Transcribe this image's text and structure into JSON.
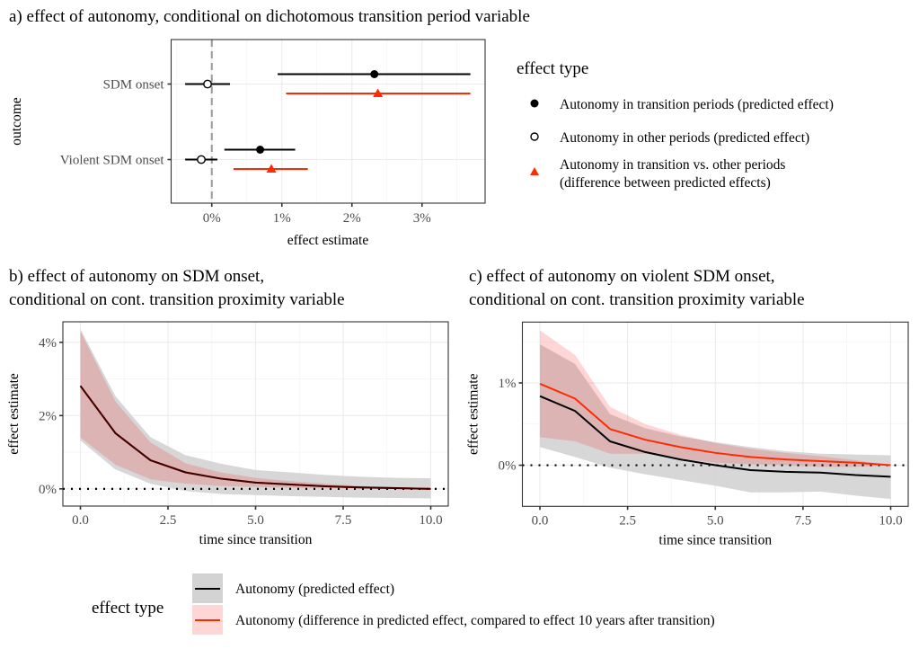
{
  "chart_data": [
    {
      "id": "a",
      "type": "pointrange",
      "title": "a) effect of autonomy, conditional on dichotomous transition period variable",
      "xlabel": "effect estimate",
      "ylabel": "outcome",
      "xlim": [
        -0.58,
        3.9
      ],
      "x_ticks": [
        0,
        1,
        2,
        3
      ],
      "x_tick_labels": [
        "0%",
        "1%",
        "2%",
        "3%"
      ],
      "reference_line": {
        "x": 0,
        "style": "dashed"
      },
      "categories": [
        "SDM onset",
        "Violent SDM onset"
      ],
      "series": [
        {
          "name": "Autonomy in transition periods (predicted effect)",
          "marker": "filled-circle",
          "color": "#000000",
          "points": [
            {
              "category": "SDM onset",
              "estimate": 2.32,
              "low": 0.94,
              "high": 3.69
            },
            {
              "category": "Violent SDM onset",
              "estimate": 0.69,
              "low": 0.18,
              "high": 1.19
            }
          ]
        },
        {
          "name": "Autonomy in other periods (predicted effect)",
          "marker": "open-circle",
          "color": "#000000",
          "points": [
            {
              "category": "SDM onset",
              "estimate": -0.06,
              "low": -0.38,
              "high": 0.26
            },
            {
              "category": "Violent SDM onset",
              "estimate": -0.15,
              "low": -0.38,
              "high": 0.08
            }
          ]
        },
        {
          "name": "Autonomy in transition vs. other periods (difference between predicted effects)",
          "marker": "triangle",
          "color": "#ff2a00",
          "points": [
            {
              "category": "SDM onset",
              "estimate": 2.37,
              "low": 1.06,
              "high": 3.69
            },
            {
              "category": "Violent SDM onset",
              "estimate": 0.85,
              "low": 0.31,
              "high": 1.37
            }
          ]
        }
      ],
      "legend": {
        "title": "effect type",
        "position": "right",
        "items": [
          {
            "marker": "filled-circle",
            "lines": [
              "Autonomy in transition periods (predicted effect)"
            ]
          },
          {
            "marker": "open-circle",
            "lines": [
              "Autonomy in other periods (predicted effect)"
            ]
          },
          {
            "marker": "triangle",
            "lines": [
              "Autonomy in transition vs. other periods",
              "(difference between predicted effects)"
            ]
          }
        ]
      }
    },
    {
      "id": "b",
      "type": "line",
      "title": [
        "b) effect of autonomy on SDM onset,",
        "conditional on cont. transition proximity variable"
      ],
      "xlabel": "time since transition",
      "ylabel": "effect estimate",
      "xlim": [
        -0.5,
        10.5
      ],
      "ylim": [
        -0.47,
        4.56
      ],
      "x_ticks": [
        0,
        2.5,
        5,
        7.5,
        10
      ],
      "x_tick_labels": [
        "0.0",
        "2.5",
        "5.0",
        "7.5",
        "10.0"
      ],
      "y_ticks": [
        0,
        2,
        4
      ],
      "y_tick_labels": [
        "0%",
        "2%",
        "4%"
      ],
      "reference_line": {
        "y": 0,
        "style": "dotted"
      },
      "x": [
        0,
        1,
        2,
        3,
        4,
        5,
        6,
        7,
        8,
        9,
        10
      ],
      "series": [
        {
          "name": "Autonomy (predicted effect)",
          "color": "#000000",
          "ribbon": "#d3d3d3",
          "values": [
            2.81,
            1.52,
            0.78,
            0.45,
            0.28,
            0.17,
            0.12,
            0.07,
            0.04,
            0.02,
            0.0
          ],
          "low": [
            1.32,
            0.53,
            0.14,
            -0.06,
            -0.14,
            -0.17,
            -0.2,
            -0.22,
            -0.24,
            -0.25,
            -0.26
          ],
          "high": [
            4.36,
            2.53,
            1.41,
            0.92,
            0.69,
            0.51,
            0.45,
            0.38,
            0.33,
            0.3,
            0.29
          ]
        },
        {
          "name": "Autonomy (difference in predicted effect, compared to effect 10 years after transition)",
          "color": "#ff2a00",
          "ribbon": "#ff0000",
          "values": [
            2.81,
            1.52,
            0.78,
            0.45,
            0.28,
            0.17,
            0.12,
            0.07,
            0.04,
            0.02,
            0.0
          ],
          "low": [
            1.4,
            0.66,
            0.26,
            0.14,
            0.08,
            0.05,
            0.03,
            0.02,
            0.01,
            0.0,
            0.0
          ],
          "high": [
            4.3,
            2.39,
            1.27,
            0.7,
            0.45,
            0.3,
            0.21,
            0.14,
            0.08,
            0.04,
            0.0
          ]
        }
      ]
    },
    {
      "id": "c",
      "type": "line",
      "title": [
        "c) effect of autonomy on violent SDM onset,",
        "conditional on cont. transition proximity variable"
      ],
      "xlabel": "time since transition",
      "ylabel": "effect estimate",
      "xlim": [
        -0.5,
        10.5
      ],
      "ylim": [
        -0.5,
        1.74
      ],
      "x_ticks": [
        0,
        2.5,
        5,
        7.5,
        10
      ],
      "x_tick_labels": [
        "0.0",
        "2.5",
        "5.0",
        "7.5",
        "10.0"
      ],
      "y_ticks": [
        0,
        1
      ],
      "y_tick_labels": [
        "0%",
        "1%"
      ],
      "reference_line": {
        "y": 0,
        "style": "dotted"
      },
      "x": [
        0,
        1,
        2,
        3,
        4,
        5,
        6,
        7,
        8,
        9,
        10
      ],
      "series": [
        {
          "name": "Autonomy (predicted effect)",
          "color": "#000000",
          "ribbon": "#d3d3d3",
          "values": [
            0.84,
            0.66,
            0.29,
            0.16,
            0.07,
            0.0,
            -0.06,
            -0.08,
            -0.09,
            -0.12,
            -0.14
          ],
          "low": [
            0.22,
            0.1,
            -0.03,
            -0.11,
            -0.18,
            -0.25,
            -0.33,
            -0.33,
            -0.32,
            -0.37,
            -0.41
          ],
          "high": [
            1.47,
            1.23,
            0.62,
            0.45,
            0.35,
            0.28,
            0.22,
            0.17,
            0.14,
            0.13,
            0.12
          ]
        },
        {
          "name": "Autonomy (difference in predicted effect, compared to effect 10 years after transition)",
          "color": "#ff2a00",
          "ribbon": "#ff0000",
          "values": [
            0.99,
            0.81,
            0.44,
            0.31,
            0.22,
            0.15,
            0.1,
            0.07,
            0.05,
            0.03,
            0.0
          ],
          "low": [
            0.34,
            0.29,
            0.14,
            0.14,
            0.08,
            0.03,
            0.01,
            0.0,
            -0.02,
            -0.02,
            0.0
          ],
          "high": [
            1.64,
            1.34,
            0.71,
            0.5,
            0.37,
            0.27,
            0.2,
            0.15,
            0.11,
            0.06,
            0.0
          ]
        }
      ]
    }
  ],
  "bottom_legend": {
    "title": "effect type",
    "position": "bottom",
    "items": [
      {
        "label": "Autonomy (predicted effect)",
        "line_color": "#000000",
        "fill_color": "#d3d3d3"
      },
      {
        "label": "Autonomy (difference in predicted effect, compared to effect 10 years after transition)",
        "line_color": "#ff2a00",
        "fill_color": "#ffd6d6"
      }
    ]
  }
}
